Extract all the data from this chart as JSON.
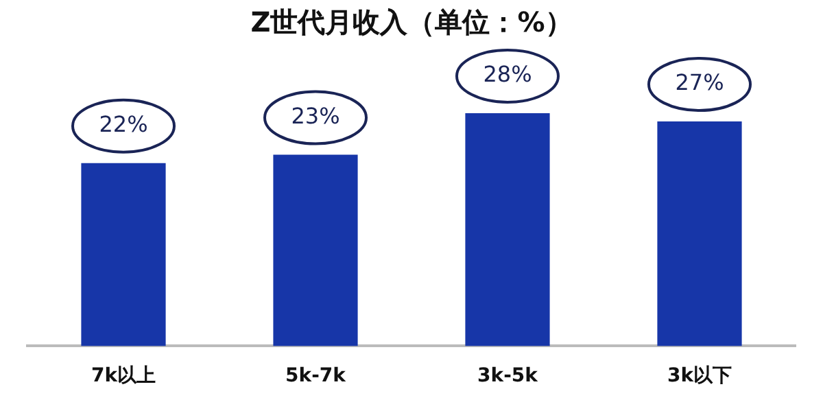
{
  "chart_data": {
    "type": "bar",
    "title": "Z世代月收入（单位：%）",
    "categories": [
      "7k以上",
      "5k-7k",
      "3k-5k",
      "3k以下"
    ],
    "values": [
      22,
      23,
      28,
      27
    ],
    "value_labels": [
      "22%",
      "23%",
      "28%",
      "27%"
    ],
    "color": "#1736a8",
    "grid": false,
    "legend": false
  }
}
